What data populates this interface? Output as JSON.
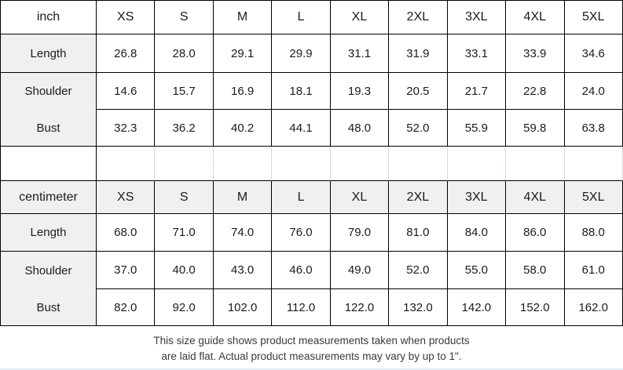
{
  "colors": {
    "table_border": "#000000",
    "label_cell_bg": "#f0f0f0",
    "cm_header_bg": "#f0f0f0",
    "spacer_divider": "#cddae4",
    "text": "#1b1b1b",
    "footer_text": "#3a3a3a"
  },
  "chart_data": [
    {
      "type": "table",
      "unit": "inch",
      "columns": [
        "inch",
        "XS",
        "S",
        "M",
        "L",
        "XL",
        "2XL",
        "3XL",
        "4XL",
        "5XL"
      ],
      "rows": [
        [
          "Length",
          "26.8",
          "28.0",
          "29.1",
          "29.9",
          "31.1",
          "31.9",
          "33.1",
          "33.9",
          "34.6"
        ],
        [
          "Shoulder",
          "14.6",
          "15.7",
          "16.9",
          "18.1",
          "19.3",
          "20.5",
          "21.7",
          "22.8",
          "24.0"
        ],
        [
          "Bust",
          "32.3",
          "36.2",
          "40.2",
          "44.1",
          "48.0",
          "52.0",
          "55.9",
          "59.8",
          "63.8"
        ]
      ]
    },
    {
      "type": "table",
      "unit": "centimeter",
      "columns": [
        "centimeter",
        "XS",
        "S",
        "M",
        "L",
        "XL",
        "2XL",
        "3XL",
        "4XL",
        "5XL"
      ],
      "rows": [
        [
          "Length",
          "68.0",
          "71.0",
          "74.0",
          "76.0",
          "79.0",
          "81.0",
          "84.0",
          "86.0",
          "88.0"
        ],
        [
          "Shoulder",
          "37.0",
          "40.0",
          "43.0",
          "46.0",
          "49.0",
          "52.0",
          "55.0",
          "58.0",
          "61.0"
        ],
        [
          "Bust",
          "82.0",
          "92.0",
          "102.0",
          "112.0",
          "122.0",
          "132.0",
          "142.0",
          "152.0",
          "162.0"
        ]
      ]
    }
  ],
  "footer": {
    "line1": "This size guide shows product measurements taken when products",
    "line2": "are laid flat. Actual product measurements may vary by up to 1\"."
  }
}
